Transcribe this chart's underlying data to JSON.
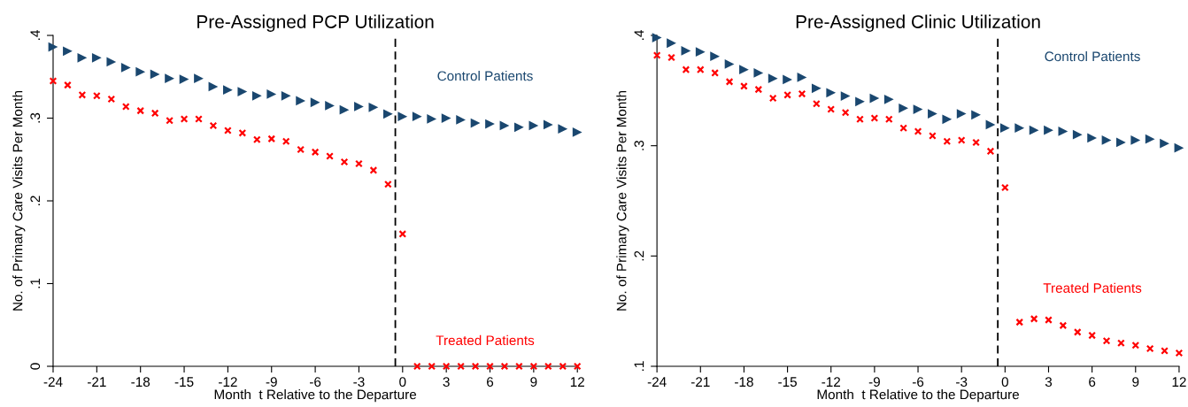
{
  "chart_data": [
    {
      "type": "scatter",
      "title": "Pre-Assigned PCP Utilization",
      "xlabel": "Month  t Relative to the Departure",
      "ylabel": "No. of Primary Care Visits Per Month",
      "x": [
        -24,
        -23,
        -22,
        -21,
        -20,
        -19,
        -18,
        -17,
        -16,
        -15,
        -14,
        -13,
        -12,
        -11,
        -10,
        -9,
        -8,
        -7,
        -6,
        -5,
        -4,
        -3,
        -2,
        -1,
        0,
        1,
        2,
        3,
        4,
        5,
        6,
        7,
        8,
        9,
        10,
        11,
        12
      ],
      "series": [
        {
          "name": "Control Patients",
          "color": "#1a476f",
          "marker": "triangle",
          "values": [
            0.386,
            0.381,
            0.373,
            0.373,
            0.368,
            0.361,
            0.356,
            0.353,
            0.348,
            0.347,
            0.348,
            0.338,
            0.334,
            0.332,
            0.327,
            0.329,
            0.327,
            0.321,
            0.319,
            0.315,
            0.31,
            0.314,
            0.313,
            0.305,
            0.302,
            0.302,
            0.299,
            0.3,
            0.298,
            0.294,
            0.293,
            0.291,
            0.289,
            0.291,
            0.292,
            0.287,
            0.283
          ]
        },
        {
          "name": "Treated Patients",
          "color": "#ff0000",
          "marker": "cross",
          "values": [
            0.345,
            0.34,
            0.328,
            0.327,
            0.323,
            0.314,
            0.309,
            0.306,
            0.297,
            0.299,
            0.299,
            0.291,
            0.285,
            0.282,
            0.274,
            0.275,
            0.272,
            0.262,
            0.259,
            0.254,
            0.247,
            0.245,
            0.237,
            0.22,
            0.16,
            0,
            0,
            0,
            0,
            0,
            0,
            0,
            0,
            0,
            0,
            0,
            0
          ]
        }
      ],
      "xlim": [
        -24,
        12
      ],
      "xticks": [
        -24,
        -21,
        -18,
        -15,
        -12,
        -9,
        -6,
        -3,
        0,
        3,
        6,
        9,
        12
      ],
      "ylim": [
        0,
        0.4
      ],
      "yticks": [
        0,
        {
          "value": 0.1,
          "label": ".1"
        },
        {
          "value": 0.2,
          "label": ".2"
        },
        {
          "value": 0.3,
          "label": ".3"
        },
        {
          "value": 0.4,
          "label": ".4"
        }
      ],
      "ref_lines": [
        {
          "axis": "x",
          "value": -0.5,
          "label": null,
          "color": "#000000",
          "line_style": "dashed"
        }
      ],
      "grid": false,
      "legend": false
    },
    {
      "type": "scatter",
      "title": "Pre-Assigned Clinic Utilization",
      "xlabel": "Month  t Relative to the Departure",
      "ylabel": "No. of Primary Care Visits Per Month",
      "x": [
        -24,
        -23,
        -22,
        -21,
        -20,
        -19,
        -18,
        -17,
        -16,
        -15,
        -14,
        -13,
        -12,
        -11,
        -10,
        -9,
        -8,
        -7,
        -6,
        -5,
        -4,
        -3,
        -2,
        -1,
        0,
        1,
        2,
        3,
        4,
        5,
        6,
        7,
        8,
        9,
        10,
        11,
        12
      ],
      "series": [
        {
          "name": "Control Patients",
          "color": "#1a476f",
          "marker": "triangle",
          "values": [
            0.398,
            0.393,
            0.386,
            0.385,
            0.381,
            0.374,
            0.369,
            0.366,
            0.361,
            0.36,
            0.362,
            0.352,
            0.348,
            0.345,
            0.34,
            0.343,
            0.342,
            0.334,
            0.333,
            0.329,
            0.324,
            0.329,
            0.328,
            0.319,
            0.316,
            0.316,
            0.314,
            0.314,
            0.313,
            0.31,
            0.307,
            0.305,
            0.303,
            0.305,
            0.306,
            0.302,
            0.298
          ]
        },
        {
          "name": "Treated Patients",
          "color": "#ff0000",
          "marker": "cross",
          "values": [
            0.382,
            0.38,
            0.369,
            0.369,
            0.366,
            0.358,
            0.354,
            0.351,
            0.343,
            0.346,
            0.347,
            0.338,
            0.333,
            0.33,
            0.324,
            0.325,
            0.324,
            0.316,
            0.313,
            0.309,
            0.304,
            0.305,
            0.303,
            0.295,
            0.262,
            0.14,
            0.143,
            0.142,
            0.137,
            0.131,
            0.128,
            0.123,
            0.121,
            0.119,
            0.116,
            0.114,
            0.112
          ]
        }
      ],
      "xlim": [
        -24,
        12
      ],
      "xticks": [
        -24,
        -21,
        -18,
        -15,
        -12,
        -9,
        -6,
        -3,
        0,
        3,
        6,
        9,
        12
      ],
      "ylim": [
        0.1,
        0.4
      ],
      "yticks": [
        {
          "value": 0.1,
          "label": ".1"
        },
        {
          "value": 0.2,
          "label": ".2"
        },
        {
          "value": 0.3,
          "label": ".3"
        },
        {
          "value": 0.4,
          "label": ".4"
        }
      ],
      "ref_lines": [
        {
          "axis": "x",
          "value": -0.5,
          "label": null,
          "color": "#000000",
          "line_style": "dashed"
        }
      ],
      "grid": false,
      "legend": false
    }
  ]
}
